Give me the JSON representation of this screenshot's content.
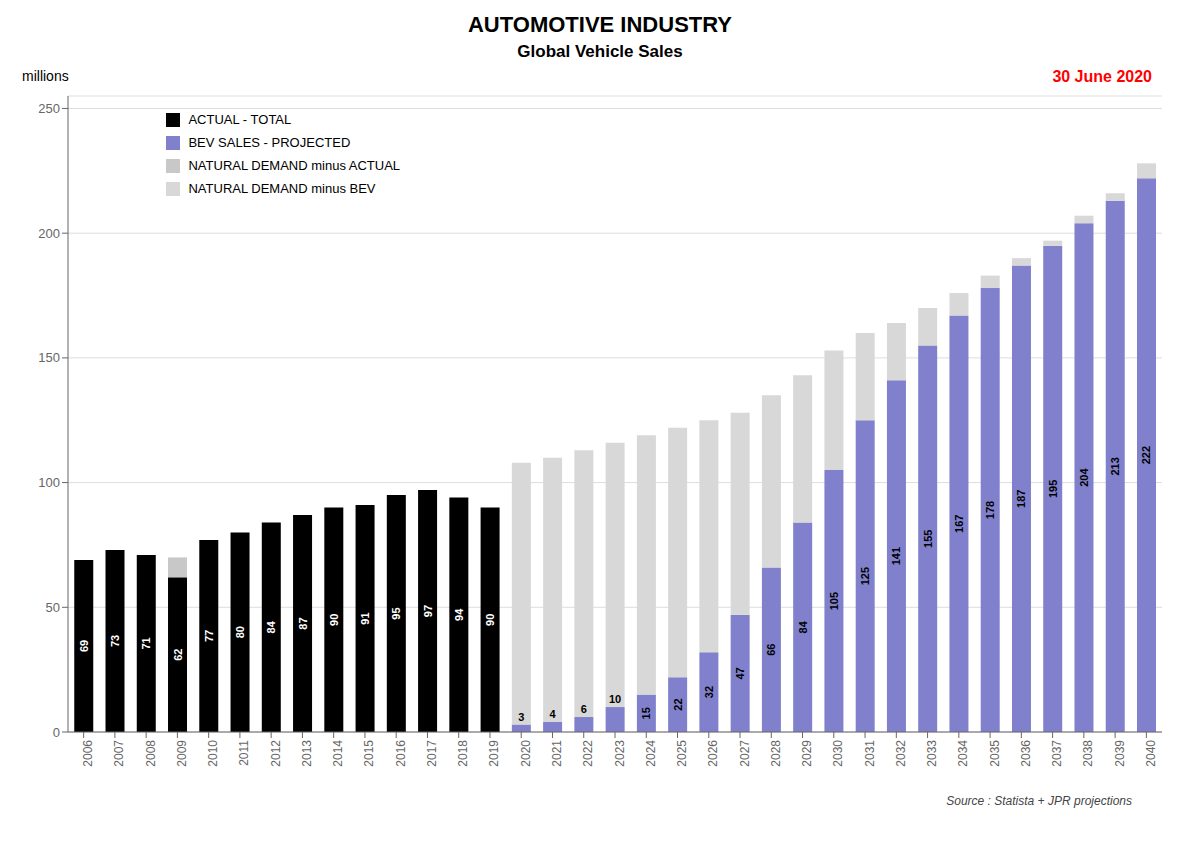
{
  "chart_data": {
    "type": "bar",
    "title": "AUTOMOTIVE INDUSTRY",
    "subtitle": "Global Vehicle Sales",
    "ylabel": "millions",
    "annotations": [
      {
        "text": "30 June 2020",
        "color": "red"
      },
      {
        "text": "Source : Statista + JPR projections"
      }
    ],
    "categories": [
      "2006",
      "2007",
      "2008",
      "2009",
      "2010",
      "2011",
      "2012",
      "2013",
      "2014",
      "2015",
      "2016",
      "2017",
      "2018",
      "2019",
      "2020",
      "2021",
      "2022",
      "2023",
      "2024",
      "2025",
      "2026",
      "2027",
      "2028",
      "2029",
      "2030",
      "2031",
      "2032",
      "2033",
      "2034",
      "2035",
      "2036",
      "2037",
      "2038",
      "2039",
      "2040"
    ],
    "series": [
      {
        "name": "ACTUAL - TOTAL",
        "color": "#000000",
        "data_labels": true,
        "values": [
          69,
          73,
          71,
          62,
          77,
          80,
          84,
          87,
          90,
          91,
          95,
          97,
          94,
          90,
          0,
          0,
          0,
          0,
          0,
          0,
          0,
          0,
          0,
          0,
          0,
          0,
          0,
          0,
          0,
          0,
          0,
          0,
          0,
          0,
          0
        ]
      },
      {
        "name": "BEV SALES - PROJECTED",
        "color": "#8080cc",
        "data_labels": true,
        "values": [
          0,
          0,
          0,
          0,
          0,
          0,
          0,
          0,
          0,
          0,
          0,
          0,
          0,
          0,
          3,
          4,
          6,
          10,
          15,
          22,
          32,
          47,
          66,
          84,
          105,
          125,
          141,
          155,
          167,
          178,
          187,
          195,
          204,
          213,
          222
        ]
      },
      {
        "name": "NATURAL DEMAND minus ACTUAL",
        "color": "#c8c8c8",
        "values": [
          0,
          0,
          0,
          8,
          0,
          0,
          0,
          0,
          0,
          0,
          0,
          0,
          0,
          0,
          0,
          0,
          0,
          0,
          0,
          0,
          0,
          0,
          0,
          0,
          0,
          0,
          0,
          0,
          0,
          0,
          0,
          0,
          0,
          0,
          0
        ]
      },
      {
        "name": "NATURAL DEMAND minus BEV",
        "color": "#d8d8d8",
        "values": [
          0,
          0,
          0,
          0,
          0,
          0,
          0,
          0,
          0,
          0,
          0,
          0,
          0,
          0,
          105,
          106,
          107,
          106,
          104,
          100,
          93,
          81,
          69,
          59,
          48,
          35,
          23,
          15,
          9,
          5,
          3,
          2,
          3,
          3,
          6
        ]
      }
    ],
    "stacked": true,
    "ylim": [
      0,
      255
    ],
    "yticks": [
      0,
      50,
      100,
      150,
      200,
      250
    ],
    "grid": true,
    "legend": "upper left"
  }
}
